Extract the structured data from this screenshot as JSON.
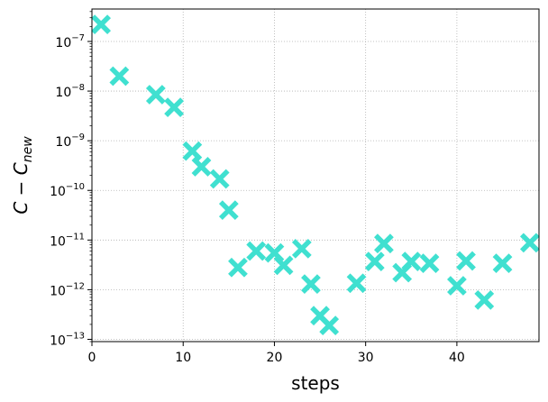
{
  "chart_data": {
    "type": "scatter",
    "xlabel": "steps",
    "ylabel_main": "C − C",
    "ylabel_sub": "new",
    "x_ticks": [
      0,
      10,
      20,
      30,
      40
    ],
    "xlim": [
      0,
      49
    ],
    "y_scale": "log",
    "ylim": [
      9e-14,
      4.5e-07
    ],
    "y_ticks": [
      {
        "value": 1e-13,
        "base": "10",
        "exp": "−13"
      },
      {
        "value": 1e-12,
        "base": "10",
        "exp": "−12"
      },
      {
        "value": 1e-11,
        "base": "10",
        "exp": "−11"
      },
      {
        "value": 1e-10,
        "base": "10",
        "exp": "−10"
      },
      {
        "value": 1e-09,
        "base": "10",
        "exp": "−9"
      },
      {
        "value": 1e-08,
        "base": "10",
        "exp": "−8"
      },
      {
        "value": 1e-07,
        "base": "10",
        "exp": "−7"
      }
    ],
    "grid": true,
    "marker": "X",
    "color": "#40e0d0",
    "points": [
      {
        "x": 1,
        "y": 2.2e-07
      },
      {
        "x": 3,
        "y": 2e-08
      },
      {
        "x": 7,
        "y": 8.5e-09
      },
      {
        "x": 9,
        "y": 4.7e-09
      },
      {
        "x": 11,
        "y": 6.2e-10
      },
      {
        "x": 12,
        "y": 3e-10
      },
      {
        "x": 14,
        "y": 1.7e-10
      },
      {
        "x": 15,
        "y": 4e-11
      },
      {
        "x": 16,
        "y": 2.8e-12
      },
      {
        "x": 18,
        "y": 6e-12
      },
      {
        "x": 20,
        "y": 5.5e-12
      },
      {
        "x": 21,
        "y": 3.1e-12
      },
      {
        "x": 23,
        "y": 6.7e-12
      },
      {
        "x": 24,
        "y": 1.3e-12
      },
      {
        "x": 25,
        "y": 3e-13
      },
      {
        "x": 26,
        "y": 1.9e-13
      },
      {
        "x": 29,
        "y": 1.35e-12
      },
      {
        "x": 31,
        "y": 3.7e-12
      },
      {
        "x": 32,
        "y": 8.5e-12
      },
      {
        "x": 34,
        "y": 2.2e-12
      },
      {
        "x": 35,
        "y": 3.7e-12
      },
      {
        "x": 37,
        "y": 3.4e-12
      },
      {
        "x": 40,
        "y": 1.2e-12
      },
      {
        "x": 41,
        "y": 3.8e-12
      },
      {
        "x": 43,
        "y": 6.2e-13
      },
      {
        "x": 45,
        "y": 3.4e-12
      },
      {
        "x": 48,
        "y": 8.8e-12
      }
    ]
  }
}
